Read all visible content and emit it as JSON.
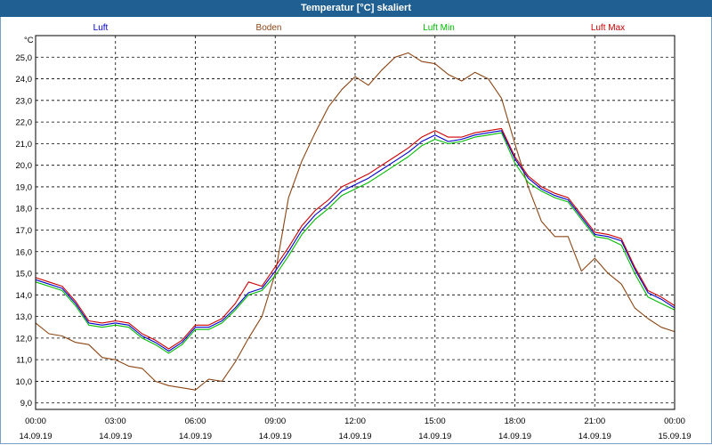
{
  "window": {
    "title": "Temperatur [°C] skaliert"
  },
  "chart_data": {
    "type": "line",
    "title": "Temperatur [°C] skaliert",
    "ylabel": "°C",
    "ylim": [
      8.7,
      26.0
    ],
    "xlim_hours": [
      0,
      24
    ],
    "grid": true,
    "legend_position": "top",
    "y_ticks": [
      "9,0",
      "10,0",
      "11,0",
      "12,0",
      "13,0",
      "14,0",
      "15,0",
      "16,0",
      "17,0",
      "18,0",
      "19,0",
      "20,0",
      "21,0",
      "22,0",
      "23,0",
      "24,0",
      "25,0"
    ],
    "x_ticks": [
      {
        "time": "00:00",
        "date": "14.09.19"
      },
      {
        "time": "03:00",
        "date": "14.09.19"
      },
      {
        "time": "06:00",
        "date": "14.09.19"
      },
      {
        "time": "09:00",
        "date": "14.09.19"
      },
      {
        "time": "12:00",
        "date": "14.09.19"
      },
      {
        "time": "15:00",
        "date": "14.09.19"
      },
      {
        "time": "18:00",
        "date": "14.09.19"
      },
      {
        "time": "21:00",
        "date": "14.09.19"
      },
      {
        "time": "00:00",
        "date": "15.09.19"
      }
    ],
    "series": [
      {
        "name": "Luft",
        "color": "#0000cc",
        "points": [
          [
            0,
            14.7
          ],
          [
            0.5,
            14.5
          ],
          [
            1,
            14.3
          ],
          [
            1.5,
            13.6
          ],
          [
            2,
            12.7
          ],
          [
            2.5,
            12.6
          ],
          [
            3,
            12.7
          ],
          [
            3.5,
            12.6
          ],
          [
            4,
            12.1
          ],
          [
            4.5,
            11.8
          ],
          [
            5,
            11.4
          ],
          [
            5.5,
            11.8
          ],
          [
            6,
            12.5
          ],
          [
            6.5,
            12.5
          ],
          [
            7,
            12.8
          ],
          [
            7.5,
            13.4
          ],
          [
            8,
            14.1
          ],
          [
            8.5,
            14.3
          ],
          [
            9,
            15.1
          ],
          [
            9.5,
            16.0
          ],
          [
            10,
            17.0
          ],
          [
            10.5,
            17.7
          ],
          [
            11,
            18.2
          ],
          [
            11.5,
            18.8
          ],
          [
            12,
            19.1
          ],
          [
            12.5,
            19.4
          ],
          [
            13,
            19.8
          ],
          [
            13.5,
            20.2
          ],
          [
            14,
            20.6
          ],
          [
            14.5,
            21.1
          ],
          [
            15,
            21.4
          ],
          [
            15.5,
            21.1
          ],
          [
            16,
            21.2
          ],
          [
            16.5,
            21.4
          ],
          [
            17,
            21.5
          ],
          [
            17.5,
            21.6
          ],
          [
            18,
            20.3
          ],
          [
            18.5,
            19.4
          ],
          [
            19,
            18.9
          ],
          [
            19.5,
            18.6
          ],
          [
            20,
            18.4
          ],
          [
            20.5,
            17.6
          ],
          [
            21,
            16.8
          ],
          [
            21.5,
            16.7
          ],
          [
            22,
            16.5
          ],
          [
            22.5,
            15.2
          ],
          [
            23,
            14.1
          ],
          [
            23.5,
            13.8
          ],
          [
            24,
            13.4
          ]
        ]
      },
      {
        "name": "Boden",
        "color": "#8b4513",
        "points": [
          [
            0,
            12.7
          ],
          [
            0.5,
            12.2
          ],
          [
            1,
            12.1
          ],
          [
            1.5,
            11.8
          ],
          [
            2,
            11.7
          ],
          [
            2.5,
            11.1
          ],
          [
            3,
            11.0
          ],
          [
            3.5,
            10.7
          ],
          [
            4,
            10.6
          ],
          [
            4.5,
            10.0
          ],
          [
            5,
            9.8
          ],
          [
            5.5,
            9.7
          ],
          [
            6,
            9.6
          ],
          [
            6.5,
            10.1
          ],
          [
            7,
            10.0
          ],
          [
            7.5,
            10.9
          ],
          [
            8,
            12.0
          ],
          [
            8.5,
            13.0
          ],
          [
            9,
            15.0
          ],
          [
            9.5,
            18.5
          ],
          [
            10,
            20.2
          ],
          [
            10.5,
            21.5
          ],
          [
            11,
            22.7
          ],
          [
            11.5,
            23.5
          ],
          [
            12,
            24.1
          ],
          [
            12.5,
            23.7
          ],
          [
            13,
            24.4
          ],
          [
            13.5,
            25.0
          ],
          [
            14,
            25.2
          ],
          [
            14.5,
            24.8
          ],
          [
            15,
            24.7
          ],
          [
            15.5,
            24.2
          ],
          [
            16,
            23.9
          ],
          [
            16.5,
            24.3
          ],
          [
            17,
            24.0
          ],
          [
            17.5,
            23.1
          ],
          [
            18,
            21.0
          ],
          [
            18.5,
            19.0
          ],
          [
            19,
            17.4
          ],
          [
            19.5,
            16.7
          ],
          [
            20,
            16.7
          ],
          [
            20.5,
            15.1
          ],
          [
            21,
            15.7
          ],
          [
            21.5,
            15.0
          ],
          [
            22,
            14.5
          ],
          [
            22.5,
            13.4
          ],
          [
            23,
            12.9
          ],
          [
            23.5,
            12.5
          ],
          [
            24,
            12.3
          ]
        ]
      },
      {
        "name": "Luft Min",
        "color": "#00bb00",
        "points": [
          [
            0,
            14.6
          ],
          [
            0.5,
            14.4
          ],
          [
            1,
            14.2
          ],
          [
            1.5,
            13.5
          ],
          [
            2,
            12.6
          ],
          [
            2.5,
            12.5
          ],
          [
            3,
            12.6
          ],
          [
            3.5,
            12.5
          ],
          [
            4,
            12.0
          ],
          [
            4.5,
            11.7
          ],
          [
            5,
            11.3
          ],
          [
            5.5,
            11.7
          ],
          [
            6,
            12.4
          ],
          [
            6.5,
            12.4
          ],
          [
            7,
            12.7
          ],
          [
            7.5,
            13.3
          ],
          [
            8,
            14.0
          ],
          [
            8.5,
            14.2
          ],
          [
            9,
            14.9
          ],
          [
            9.5,
            15.8
          ],
          [
            10,
            16.8
          ],
          [
            10.5,
            17.5
          ],
          [
            11,
            18.0
          ],
          [
            11.5,
            18.6
          ],
          [
            12,
            18.9
          ],
          [
            12.5,
            19.2
          ],
          [
            13,
            19.6
          ],
          [
            13.5,
            20.0
          ],
          [
            14,
            20.4
          ],
          [
            14.5,
            20.9
          ],
          [
            15,
            21.2
          ],
          [
            15.5,
            21.0
          ],
          [
            16,
            21.1
          ],
          [
            16.5,
            21.3
          ],
          [
            17,
            21.4
          ],
          [
            17.5,
            21.5
          ],
          [
            18,
            20.1
          ],
          [
            18.5,
            19.2
          ],
          [
            19,
            18.8
          ],
          [
            19.5,
            18.5
          ],
          [
            20,
            18.3
          ],
          [
            20.5,
            17.5
          ],
          [
            21,
            16.7
          ],
          [
            21.5,
            16.6
          ],
          [
            22,
            16.3
          ],
          [
            22.5,
            15.0
          ],
          [
            23,
            13.9
          ],
          [
            23.5,
            13.6
          ],
          [
            24,
            13.3
          ]
        ]
      },
      {
        "name": "Luft Max",
        "color": "#cc0000",
        "points": [
          [
            0,
            14.8
          ],
          [
            0.5,
            14.6
          ],
          [
            1,
            14.4
          ],
          [
            1.5,
            13.7
          ],
          [
            2,
            12.8
          ],
          [
            2.5,
            12.7
          ],
          [
            3,
            12.8
          ],
          [
            3.5,
            12.7
          ],
          [
            4,
            12.2
          ],
          [
            4.5,
            11.9
          ],
          [
            5,
            11.5
          ],
          [
            5.5,
            11.9
          ],
          [
            6,
            12.6
          ],
          [
            6.5,
            12.6
          ],
          [
            7,
            12.9
          ],
          [
            7.5,
            13.6
          ],
          [
            8,
            14.6
          ],
          [
            8.5,
            14.4
          ],
          [
            9,
            15.3
          ],
          [
            9.5,
            16.2
          ],
          [
            10,
            17.2
          ],
          [
            10.5,
            17.9
          ],
          [
            11,
            18.4
          ],
          [
            11.5,
            19.0
          ],
          [
            12,
            19.3
          ],
          [
            12.5,
            19.6
          ],
          [
            13,
            20.0
          ],
          [
            13.5,
            20.4
          ],
          [
            14,
            20.8
          ],
          [
            14.5,
            21.3
          ],
          [
            15,
            21.6
          ],
          [
            15.5,
            21.3
          ],
          [
            16,
            21.3
          ],
          [
            16.5,
            21.5
          ],
          [
            17,
            21.6
          ],
          [
            17.5,
            21.7
          ],
          [
            18,
            20.4
          ],
          [
            18.5,
            19.5
          ],
          [
            19,
            19.0
          ],
          [
            19.5,
            18.7
          ],
          [
            20,
            18.5
          ],
          [
            20.5,
            17.7
          ],
          [
            21,
            16.9
          ],
          [
            21.5,
            16.8
          ],
          [
            22,
            16.6
          ],
          [
            22.5,
            15.3
          ],
          [
            23,
            14.2
          ],
          [
            23.5,
            13.9
          ],
          [
            24,
            13.5
          ]
        ]
      }
    ]
  }
}
